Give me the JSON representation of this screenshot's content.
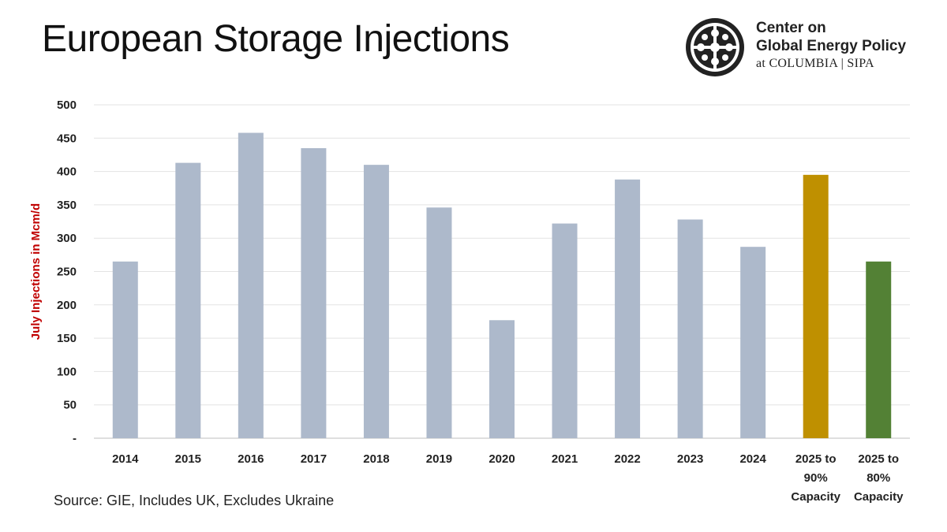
{
  "header": {
    "title": "European Storage Injections"
  },
  "logo": {
    "line1": "Center on",
    "line2": "Global Energy Policy",
    "line3": "at COLUMBIA | SIPA",
    "icon": "globe-seal-icon"
  },
  "footer": {
    "source": "Source: GIE, Includes UK, Excludes Ukraine"
  },
  "chart_data": {
    "type": "bar",
    "ylabel": "July Injections in Mcm/d",
    "ylim": [
      0,
      500
    ],
    "yticks": [
      0,
      50,
      100,
      150,
      200,
      250,
      300,
      350,
      400,
      450,
      500
    ],
    "ytick_labels": [
      "-",
      "50",
      "100",
      "150",
      "200",
      "250",
      "300",
      "350",
      "400",
      "450",
      "500"
    ],
    "grid": true,
    "categories": [
      [
        "2014"
      ],
      [
        "2015"
      ],
      [
        "2016"
      ],
      [
        "2017"
      ],
      [
        "2018"
      ],
      [
        "2019"
      ],
      [
        "2020"
      ],
      [
        "2021"
      ],
      [
        "2022"
      ],
      [
        "2023"
      ],
      [
        "2024"
      ],
      [
        "2025 to",
        "90%",
        "Capacity"
      ],
      [
        "2025 to",
        "80%",
        "Capacity"
      ]
    ],
    "values": [
      265,
      413,
      458,
      435,
      410,
      346,
      177,
      322,
      388,
      328,
      287,
      395,
      265
    ],
    "colors": [
      "#adb9cb",
      "#adb9cb",
      "#adb9cb",
      "#adb9cb",
      "#adb9cb",
      "#adb9cb",
      "#adb9cb",
      "#adb9cb",
      "#adb9cb",
      "#adb9cb",
      "#adb9cb",
      "#bf9000",
      "#538135"
    ],
    "ylabel_color": "#c00000"
  }
}
